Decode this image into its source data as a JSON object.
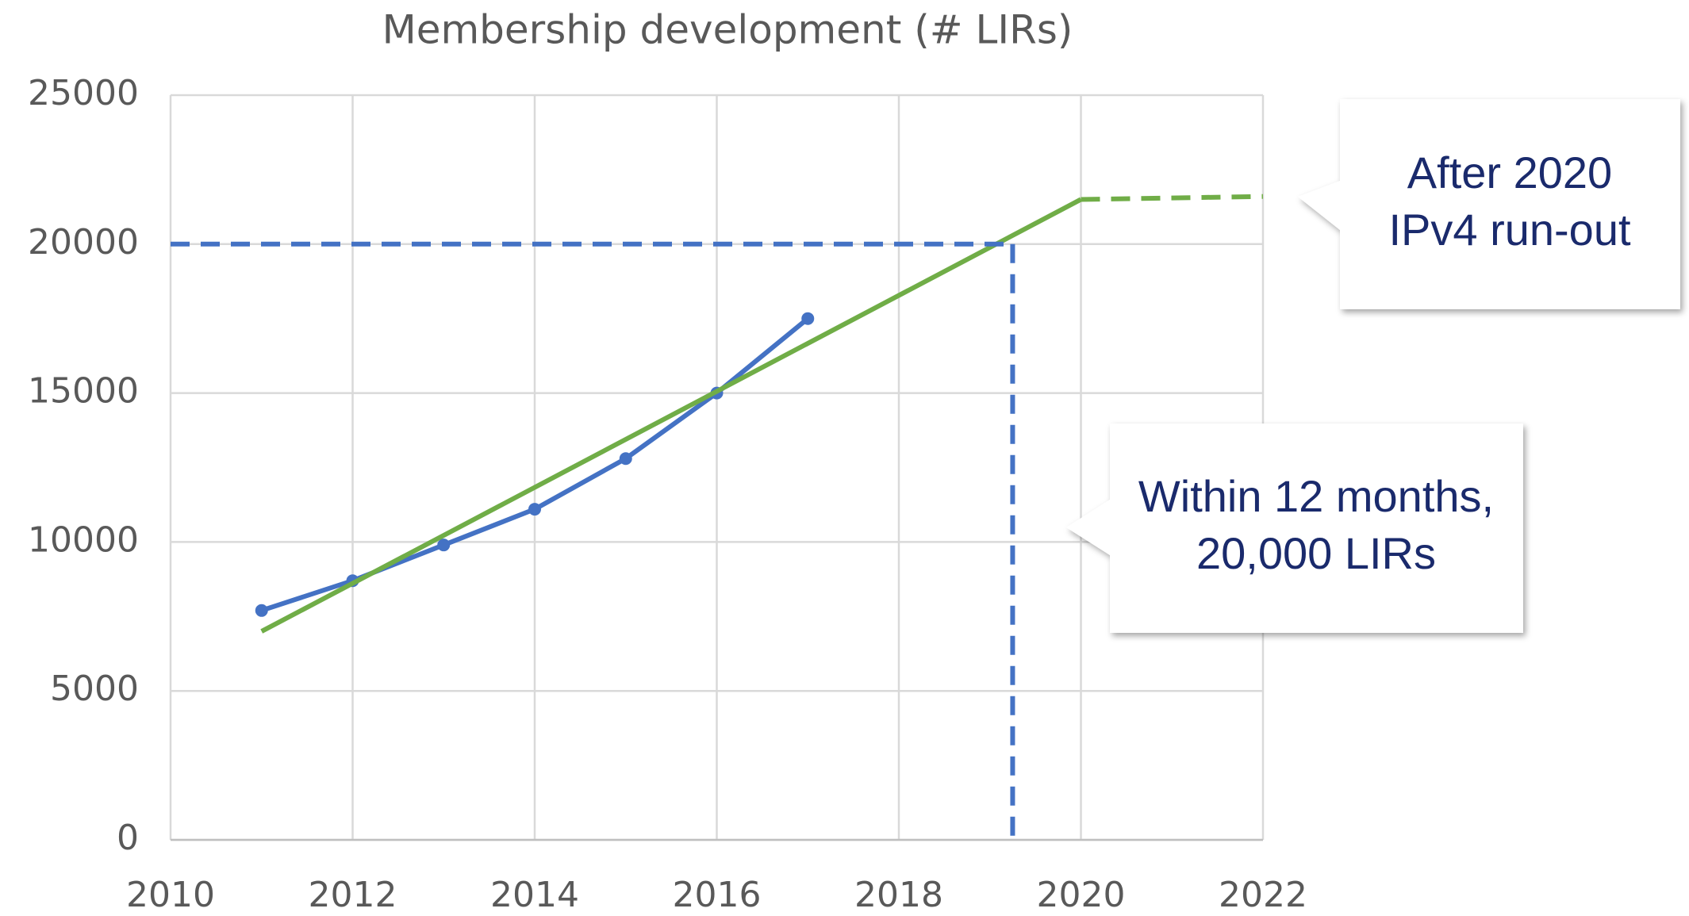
{
  "chart_data": {
    "type": "line",
    "title": "Membership development (# LIRs)",
    "xlim": [
      2010,
      2022
    ],
    "xticks": [
      2010,
      2012,
      2014,
      2016,
      2018,
      2020,
      2022
    ],
    "ylim": [
      0,
      25000
    ],
    "yticks": [
      0,
      5000,
      10000,
      15000,
      20000,
      25000
    ],
    "grid": true,
    "series": [
      {
        "color": "#4472c4",
        "markers": true,
        "dash": false,
        "x": [
          2011,
          2012,
          2013,
          2014,
          2015,
          2016,
          2017
        ],
        "values": [
          7700,
          8700,
          9900,
          11100,
          12800,
          15000,
          17500
        ]
      },
      {
        "color": "#70ad47",
        "markers": false,
        "dash": false,
        "x": [
          2011,
          2020
        ],
        "values": [
          7000,
          21500
        ]
      },
      {
        "color": "#70ad47",
        "markers": false,
        "dash": true,
        "x": [
          2020,
          2022
        ],
        "values": [
          21500,
          21600
        ]
      },
      {
        "color": "#4472c4",
        "markers": false,
        "dash": true,
        "x": [
          2010,
          2019.25
        ],
        "values": [
          20000,
          20000
        ]
      },
      {
        "color": "#4472c4",
        "markers": false,
        "dash": true,
        "x": [
          2019.25,
          2019.25
        ],
        "values": [
          20000,
          0
        ]
      }
    ],
    "annotations": [
      {
        "lines": [
          "After 2020",
          "IPv4 run-out"
        ]
      },
      {
        "lines": [
          "Within 12 months,",
          "20,000 LIRs"
        ]
      }
    ]
  }
}
